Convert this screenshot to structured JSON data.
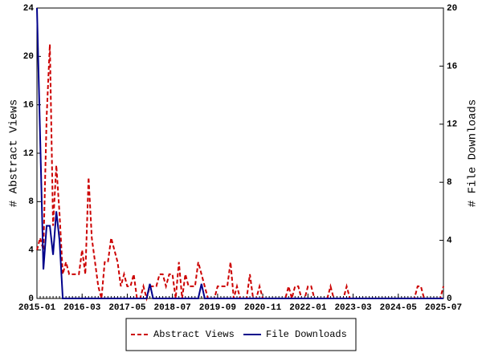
{
  "chart_data": {
    "type": "line",
    "ylabel": "# Abstract Views",
    "y2label": "# File Downloads",
    "x": [
      "2015-01",
      "2015-02",
      "2015-03",
      "2015-04",
      "2015-05",
      "2015-06",
      "2015-07",
      "2015-08",
      "2015-09",
      "2015-10",
      "2015-11",
      "2015-12",
      "2016-01",
      "2016-02",
      "2016-03",
      "2016-04",
      "2016-05",
      "2016-06",
      "2016-07",
      "2016-08",
      "2016-09",
      "2016-10",
      "2016-11",
      "2016-12",
      "2017-01",
      "2017-02",
      "2017-03",
      "2017-04",
      "2017-05",
      "2017-06",
      "2017-07",
      "2017-08",
      "2017-09",
      "2017-10",
      "2017-11",
      "2017-12",
      "2018-01",
      "2018-02",
      "2018-03",
      "2018-04",
      "2018-05",
      "2018-06",
      "2018-07",
      "2018-08",
      "2018-09",
      "2018-10",
      "2018-11",
      "2018-12",
      "2019-01",
      "2019-02",
      "2019-03",
      "2019-04",
      "2019-05",
      "2019-06",
      "2019-07",
      "2019-08",
      "2019-09",
      "2019-10",
      "2019-11",
      "2019-12",
      "2020-01",
      "2020-02",
      "2020-03",
      "2020-04",
      "2020-05",
      "2020-06",
      "2020-07",
      "2020-08",
      "2020-09",
      "2020-10",
      "2020-11",
      "2020-12",
      "2021-01",
      "2021-02",
      "2021-03",
      "2021-04",
      "2021-05",
      "2021-06",
      "2021-07",
      "2021-08",
      "2021-09",
      "2021-10",
      "2021-11",
      "2021-12",
      "2022-01",
      "2022-02",
      "2022-03",
      "2022-04",
      "2022-05",
      "2022-06",
      "2022-07",
      "2022-08",
      "2022-09",
      "2022-10",
      "2022-11",
      "2022-12",
      "2023-01",
      "2023-02",
      "2023-03",
      "2023-04",
      "2023-05",
      "2023-06",
      "2023-07",
      "2023-08",
      "2023-09",
      "2023-10",
      "2023-11",
      "2023-12",
      "2024-01",
      "2024-02",
      "2024-03",
      "2024-04",
      "2024-05",
      "2024-06",
      "2024-07",
      "2024-08",
      "2024-09",
      "2024-10",
      "2024-11",
      "2024-12",
      "2025-01",
      "2025-02",
      "2025-03",
      "2025-04",
      "2025-05",
      "2025-06",
      "2025-07"
    ],
    "xlim": [
      "2015-01",
      "2025-07"
    ],
    "xticks": [
      "2015-01",
      "2016-03",
      "2017-05",
      "2018-07",
      "2019-09",
      "2020-11",
      "2022-01",
      "2023-03",
      "2024-05",
      "2025-07"
    ],
    "ylim": [
      0,
      24
    ],
    "yticks": [
      0,
      4,
      8,
      12,
      16,
      20,
      24
    ],
    "y2lim": [
      0,
      20
    ],
    "y2ticks": [
      0,
      4,
      8,
      12,
      16,
      20
    ],
    "series": [
      {
        "name": "Abstract Views",
        "color": "#cc0000",
        "dashed": true,
        "values": [
          4,
          5,
          4,
          15,
          21,
          6,
          11,
          7,
          2,
          3,
          2,
          2,
          2,
          2,
          4,
          2,
          10,
          5,
          3,
          1,
          0,
          3,
          3,
          5,
          4,
          3,
          1,
          2,
          1,
          1,
          2,
          0,
          0,
          1,
          0,
          1,
          1,
          1,
          2,
          2,
          1,
          2,
          2,
          0,
          3,
          0,
          2,
          1,
          1,
          1,
          3,
          2,
          1,
          0,
          0,
          0,
          1,
          1,
          1,
          1,
          3,
          0,
          1,
          0,
          0,
          0,
          2,
          0,
          0,
          1,
          0,
          0,
          0,
          0,
          0,
          0,
          0,
          0,
          1,
          0,
          1,
          1,
          0,
          0,
          1,
          1,
          0,
          0,
          0,
          0,
          0,
          1,
          0,
          0,
          0,
          0,
          1,
          0,
          0,
          0,
          0,
          0,
          0,
          0,
          0,
          0,
          0,
          0,
          0,
          0,
          0,
          0,
          0,
          0,
          0,
          0,
          0,
          0,
          1,
          1,
          0,
          0,
          0,
          0,
          0,
          0,
          1
        ]
      },
      {
        "name": "File Downloads",
        "color": "#00008b",
        "axis": "y2",
        "values": [
          20,
          11,
          2,
          5,
          5,
          3,
          6,
          4,
          0,
          0,
          0,
          0,
          0,
          0,
          0,
          0,
          0,
          0,
          0,
          0,
          0,
          0,
          0,
          0,
          0,
          0,
          0,
          0,
          0,
          0,
          0,
          0,
          0,
          0,
          0,
          1,
          0,
          0,
          0,
          0,
          0,
          0,
          0,
          0,
          0,
          0,
          0,
          0,
          0,
          0,
          0,
          1,
          0,
          0,
          0,
          0,
          0,
          0,
          0,
          0,
          0,
          0,
          0,
          0,
          0,
          0,
          0,
          0,
          0,
          0,
          0,
          0,
          0,
          0,
          0,
          0,
          0,
          0,
          0,
          0,
          0,
          0,
          0,
          0,
          0,
          0,
          0,
          0,
          0,
          0,
          0,
          0,
          0,
          0,
          0,
          0,
          0,
          0,
          0,
          0,
          0,
          0,
          0,
          0,
          0,
          0,
          0,
          0,
          0,
          0,
          0,
          0,
          0,
          0,
          0,
          0,
          0,
          0,
          0,
          0,
          0,
          0,
          0,
          0,
          0,
          0,
          0
        ]
      }
    ]
  }
}
